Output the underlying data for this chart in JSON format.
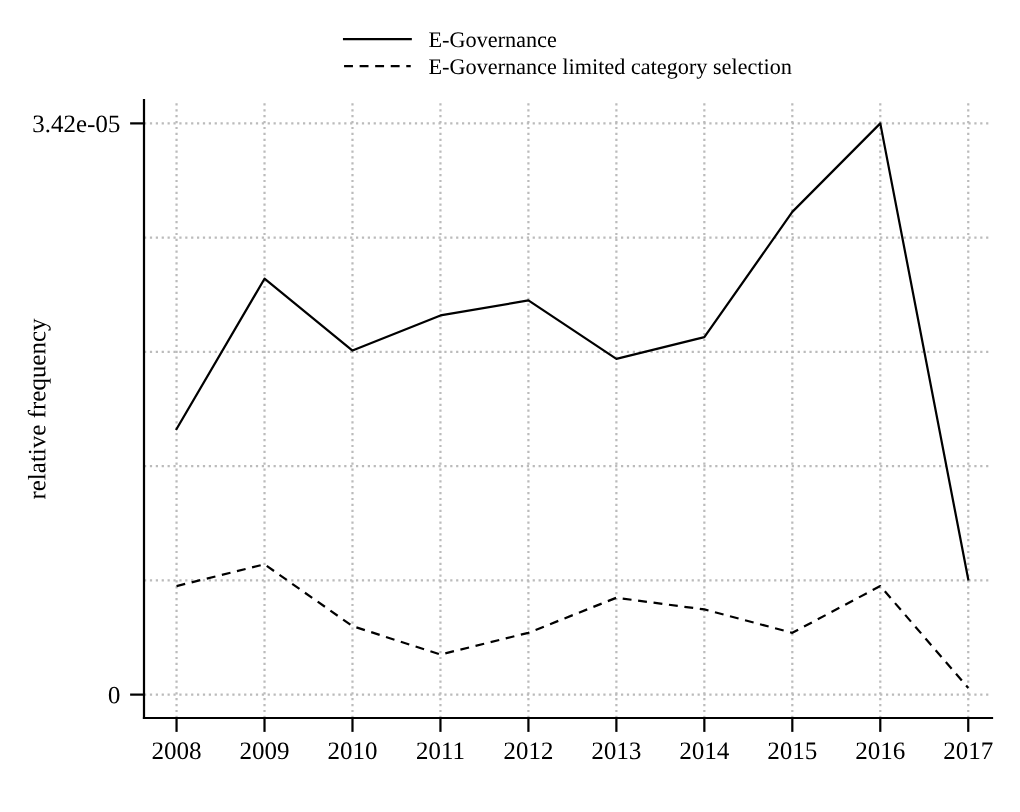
{
  "chart_data": {
    "type": "line",
    "ylabel": "relative frequency",
    "x": [
      2008,
      2009,
      2010,
      2011,
      2012,
      2013,
      2014,
      2015,
      2016,
      2017
    ],
    "series": [
      {
        "name": "E-Governance",
        "color": "#000000",
        "line_style": "solid",
        "values": [
          1.59e-05,
          2.49e-05,
          2.06e-05,
          2.27e-05,
          2.36e-05,
          2.01e-05,
          2.14e-05,
          2.89e-05,
          3.42e-05,
          6.9e-06
        ]
      },
      {
        "name": "E-Governance limited category selection",
        "color": "#000000",
        "line_style": "dashed",
        "values": [
          6.5e-06,
          7.8e-06,
          4.1e-06,
          2.4e-06,
          3.7e-06,
          5.8e-06,
          5.1e-06,
          3.7e-06,
          6.5e-06,
          4e-07
        ]
      }
    ],
    "xlim": [
      2007.63,
      2017.27
    ],
    "xticks": [
      2008,
      2009,
      2010,
      2011,
      2012,
      2013,
      2014,
      2015,
      2016,
      2017
    ],
    "ylim": [
      -1.4e-06,
      3.56e-05
    ],
    "yticks": [
      0,
      {
        "value": 6.84e-06,
        "label": null
      },
      {
        "value": 1.368e-05,
        "label": null
      },
      {
        "value": 2.052e-05,
        "label": null
      },
      {
        "value": 2.736e-05,
        "label": null
      },
      {
        "value": 3.42e-05,
        "label": "3.42e-05"
      }
    ],
    "grid": true,
    "legend": "top",
    "marker": "none"
  }
}
